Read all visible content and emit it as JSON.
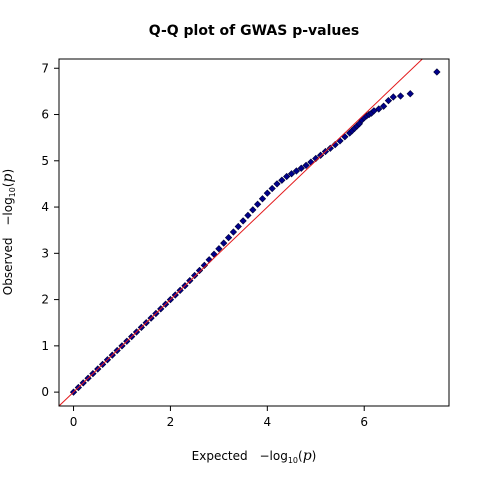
{
  "chart_data": {
    "type": "scatter",
    "title": "Q-Q plot of GWAS p-values",
    "xlabel": {
      "text": "Expected",
      "minus": "−",
      "fn": "log",
      "base": "10",
      "open": "(",
      "var": "p",
      "close": ")"
    },
    "ylabel": {
      "text": "Observed",
      "minus": "−",
      "fn": "log",
      "base": "10",
      "open": "(",
      "var": "p",
      "close": ")"
    },
    "xlim": [
      -0.3,
      7.75
    ],
    "ylim": [
      -0.3,
      7.2
    ],
    "xticks": [
      0,
      2,
      4,
      6
    ],
    "yticks": [
      0,
      1,
      2,
      3,
      4,
      5,
      6,
      7
    ],
    "grid": false,
    "legend": "none",
    "point_color": "#00008b",
    "reference_line_color": "#e31a1c",
    "reference_line": {
      "slope": 1,
      "intercept": 0
    },
    "series": [
      {
        "x": [
          0,
          0.1,
          0.2,
          0.3,
          0.4,
          0.5,
          0.6,
          0.7,
          0.8,
          0.9,
          1.0,
          1.1,
          1.2,
          1.3,
          1.4,
          1.5,
          1.6,
          1.7,
          1.8,
          1.9,
          2.0,
          2.1,
          2.2,
          2.3,
          2.4,
          2.5,
          2.6,
          2.7,
          2.8,
          2.9,
          3.0,
          3.1,
          3.2,
          3.3,
          3.4,
          3.5,
          3.6,
          3.7,
          3.8,
          3.9,
          4.0,
          4.1,
          4.2,
          4.3,
          4.4,
          4.5,
          4.6,
          4.7,
          4.8,
          4.9,
          5.0,
          5.1,
          5.2,
          5.3,
          5.4,
          5.5,
          5.6,
          5.7,
          5.75,
          5.8,
          5.85,
          5.9,
          5.95,
          6.0,
          6.05,
          6.1,
          6.15,
          6.2,
          6.3,
          6.4,
          6.5,
          6.6,
          6.75,
          6.95,
          7.5
        ],
        "y": [
          0,
          0.1,
          0.2,
          0.3,
          0.4,
          0.5,
          0.6,
          0.7,
          0.8,
          0.9,
          1.0,
          1.1,
          1.2,
          1.3,
          1.4,
          1.5,
          1.6,
          1.7,
          1.8,
          1.9,
          2.0,
          2.1,
          2.2,
          2.3,
          2.41,
          2.52,
          2.63,
          2.74,
          2.86,
          2.98,
          3.1,
          3.22,
          3.34,
          3.46,
          3.58,
          3.7,
          3.82,
          3.94,
          4.06,
          4.18,
          4.3,
          4.4,
          4.5,
          4.58,
          4.66,
          4.72,
          4.78,
          4.84,
          4.9,
          4.97,
          5.05,
          5.12,
          5.2,
          5.27,
          5.35,
          5.43,
          5.52,
          5.6,
          5.65,
          5.7,
          5.75,
          5.8,
          5.88,
          5.93,
          5.97,
          6.0,
          6.03,
          6.08,
          6.12,
          6.18,
          6.3,
          6.38,
          6.4,
          6.45,
          6.92
        ]
      }
    ]
  }
}
